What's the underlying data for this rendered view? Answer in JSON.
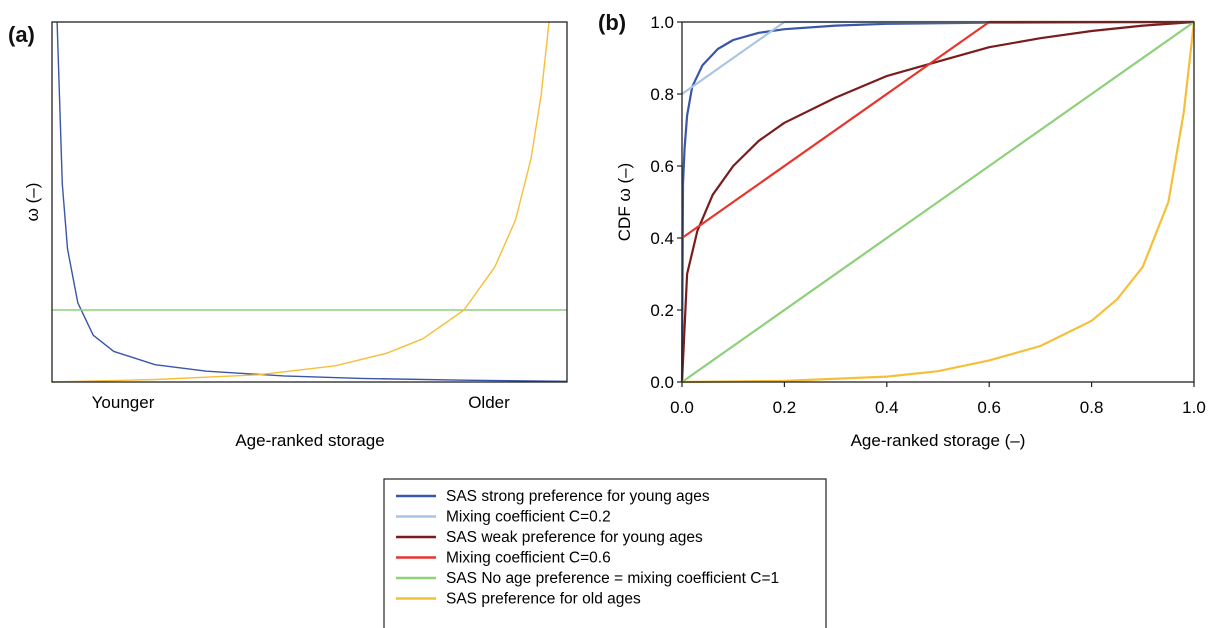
{
  "panel_labels": {
    "a": "(a)",
    "b": "(b)"
  },
  "colors": {
    "strong_young": "#3a56a8",
    "mixing_02": "#a9c4e4",
    "weak_young": "#7a1c1c",
    "mixing_06": "#e8352b",
    "no_pref": "#8fd07a",
    "old": "#f6bf3a"
  },
  "legend": [
    {
      "key": "strong_young",
      "label": "SAS strong preference for young ages"
    },
    {
      "key": "mixing_02",
      "label": "Mixing coefficient C=0.2"
    },
    {
      "key": "weak_young",
      "label": "SAS weak preference for young ages"
    },
    {
      "key": "mixing_06",
      "label": "Mixing coefficient C=0.6"
    },
    {
      "key": "no_pref",
      "label": "SAS No age preference = mixing coefficient C=1"
    },
    {
      "key": "old",
      "label": "SAS preference for old ages"
    }
  ],
  "chart_data": [
    {
      "type": "line",
      "panel": "a",
      "xlabel": "Age-ranked storage",
      "ylabel": "ω (–)",
      "x_tick_labels": [
        "Younger",
        "Older"
      ],
      "xlim": [
        0,
        1
      ],
      "ylim": [
        0,
        1
      ],
      "series": [
        {
          "key": "strong_young",
          "name": "SAS strong preference for young ages",
          "x": [
            0.01,
            0.02,
            0.03,
            0.05,
            0.08,
            0.12,
            0.2,
            0.3,
            0.45,
            0.6,
            0.8,
            1.0
          ],
          "y": [
            1.0,
            0.55,
            0.37,
            0.22,
            0.13,
            0.085,
            0.048,
            0.03,
            0.017,
            0.01,
            0.005,
            0.002
          ]
        },
        {
          "key": "no_pref",
          "name": "SAS No age preference = mixing coefficient C=1",
          "x": [
            0,
            1
          ],
          "y": [
            0.2,
            0.2
          ]
        },
        {
          "key": "old",
          "name": "SAS preference for old ages",
          "x": [
            0,
            0.2,
            0.4,
            0.55,
            0.65,
            0.72,
            0.8,
            0.86,
            0.9,
            0.93,
            0.95,
            0.965
          ],
          "y": [
            0.0,
            0.007,
            0.02,
            0.045,
            0.08,
            0.12,
            0.2,
            0.32,
            0.45,
            0.62,
            0.8,
            1.0
          ]
        }
      ]
    },
    {
      "type": "line",
      "panel": "b",
      "xlabel": "Age-ranked storage (–)",
      "ylabel": "CDF ω (–)",
      "xlim": [
        0,
        1
      ],
      "ylim": [
        0,
        1
      ],
      "x_ticks": [
        "0.0",
        "0.2",
        "0.4",
        "0.6",
        "0.8",
        "1.0"
      ],
      "y_ticks": [
        "0.0",
        "0.2",
        "0.4",
        "0.6",
        "0.8",
        "1.0"
      ],
      "series": [
        {
          "key": "strong_young",
          "name": "SAS strong preference for young ages",
          "x": [
            0,
            0.002,
            0.005,
            0.01,
            0.02,
            0.04,
            0.07,
            0.1,
            0.15,
            0.2,
            0.3,
            0.4,
            0.6,
            1.0
          ],
          "y": [
            0,
            0.55,
            0.65,
            0.74,
            0.82,
            0.88,
            0.925,
            0.95,
            0.97,
            0.98,
            0.99,
            0.995,
            0.998,
            1.0
          ]
        },
        {
          "key": "mixing_02",
          "name": "Mixing coefficient C=0.2",
          "x": [
            0,
            0.2,
            1.0
          ],
          "y": [
            0.8,
            1.0,
            1.0
          ]
        },
        {
          "key": "weak_young",
          "name": "SAS weak preference for young ages",
          "x": [
            0,
            0.01,
            0.03,
            0.06,
            0.1,
            0.15,
            0.2,
            0.3,
            0.4,
            0.5,
            0.6,
            0.7,
            0.8,
            0.9,
            1.0
          ],
          "y": [
            0,
            0.3,
            0.42,
            0.52,
            0.6,
            0.67,
            0.72,
            0.79,
            0.85,
            0.89,
            0.93,
            0.955,
            0.975,
            0.99,
            1.0
          ]
        },
        {
          "key": "mixing_06",
          "name": "Mixing coefficient C=0.6",
          "x": [
            0,
            0.6,
            1.0
          ],
          "y": [
            0.4,
            1.0,
            1.0
          ]
        },
        {
          "key": "no_pref",
          "name": "SAS No age preference = mixing coefficient C=1",
          "x": [
            0,
            1.0
          ],
          "y": [
            0,
            1.0
          ]
        },
        {
          "key": "old",
          "name": "SAS preference for old ages",
          "x": [
            0,
            0.2,
            0.4,
            0.5,
            0.6,
            0.7,
            0.8,
            0.85,
            0.9,
            0.95,
            0.98,
            1.0
          ],
          "y": [
            0,
            0.003,
            0.015,
            0.03,
            0.06,
            0.1,
            0.17,
            0.23,
            0.32,
            0.5,
            0.75,
            1.0
          ]
        }
      ]
    }
  ]
}
